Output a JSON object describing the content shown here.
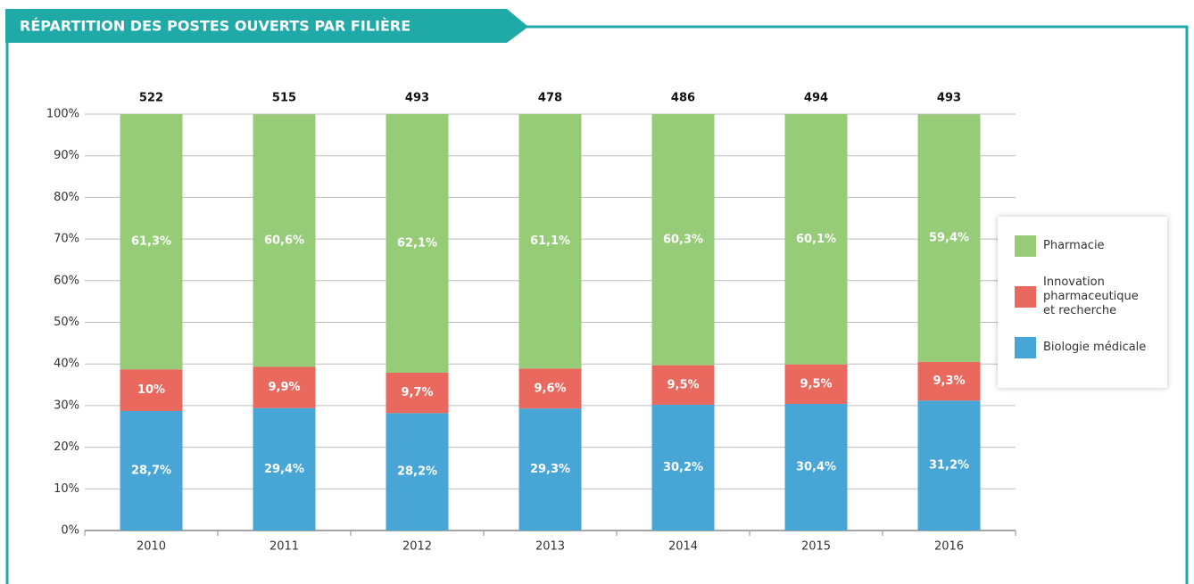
{
  "chart_data": {
    "type": "stacked_bar_percent",
    "title": "RÉPARTITION DES POSTES OUVERTS PAR FILIÈRE",
    "categories": [
      "2010",
      "2011",
      "2012",
      "2013",
      "2014",
      "2015",
      "2016"
    ],
    "totals": [
      522,
      515,
      493,
      478,
      486,
      494,
      493
    ],
    "series": [
      {
        "name": "Biologie médicale",
        "color": "#47a6d6",
        "values": [
          28.7,
          29.4,
          28.2,
          29.3,
          30.2,
          30.4,
          31.2
        ],
        "value_labels": [
          "28,7%",
          "29,4%",
          "28,2%",
          "29,3%",
          "30,2%",
          "30,4%",
          "31,2%"
        ]
      },
      {
        "name": "Innovation pharmaceutique et recherche",
        "color": "#e9695f",
        "values": [
          10,
          9.9,
          9.7,
          9.6,
          9.5,
          9.5,
          9.3
        ],
        "value_labels": [
          "10%",
          "9,9%",
          "9,7%",
          "9,6%",
          "9,5%",
          "9,5%",
          "9,3%"
        ]
      },
      {
        "name": "Pharmacie",
        "color": "#96cb78",
        "values": [
          61.3,
          60.6,
          62.1,
          61.1,
          60.3,
          60.1,
          59.4
        ],
        "value_labels": [
          "61,3%",
          "60,6%",
          "62,1%",
          "61,1%",
          "60,3%",
          "60,1%",
          "59,4%"
        ]
      }
    ],
    "ylim": [
      0,
      100
    ],
    "yticks": [
      {
        "value": 0,
        "label": "0%"
      },
      {
        "value": 10,
        "label": "10%"
      },
      {
        "value": 20,
        "label": "20%"
      },
      {
        "value": 30,
        "label": "30%"
      },
      {
        "value": 40,
        "label": "40%"
      },
      {
        "value": 50,
        "label": "50%"
      },
      {
        "value": 60,
        "label": "60%"
      },
      {
        "value": 70,
        "label": "70%"
      },
      {
        "value": 80,
        "label": "80%"
      },
      {
        "value": 90,
        "label": "90%"
      },
      {
        "value": 100,
        "label": "100%"
      }
    ],
    "grid": true,
    "legend": "right"
  }
}
